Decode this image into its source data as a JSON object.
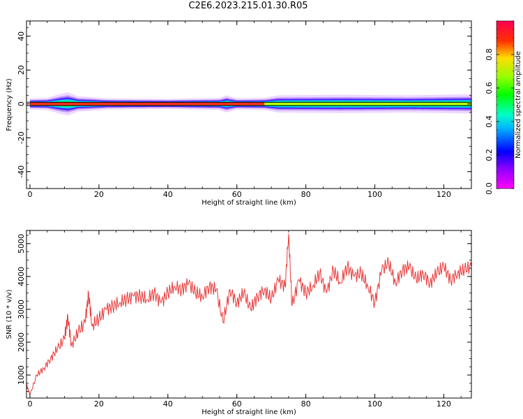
{
  "title": "C2E6.2023.215.01.30.R05",
  "chart_data": [
    {
      "type": "heatmap",
      "xlabel": "Height of straight line (km)",
      "ylabel": "Frequency (Hz)",
      "xlim": [
        -1,
        128
      ],
      "ylim": [
        -50,
        49
      ],
      "xticks": [
        0,
        20,
        40,
        60,
        80,
        100,
        120
      ],
      "yticks": [
        -40,
        -20,
        0,
        20,
        40
      ],
      "colorbar": {
        "label": "Normalized spectral amplitude",
        "range": [
          0,
          1
        ],
        "ticks": [
          "0.0",
          "0.2",
          "0.4",
          "0.6",
          "0.8"
        ],
        "tick_values": [
          0,
          0.2,
          0.4,
          0.6,
          0.8
        ],
        "colormap": "gist_rainbow_r"
      },
      "line": {
        "color": "#000000",
        "y_values": [
          -1,
          1
        ]
      },
      "band": [
        {
          "x": 0,
          "half_width_hz": 2.2
        },
        {
          "x": 5,
          "half_width_hz": 2.4
        },
        {
          "x": 9,
          "half_width_hz": 4.0
        },
        {
          "x": 11,
          "half_width_hz": 4.6
        },
        {
          "x": 14,
          "half_width_hz": 3.0
        },
        {
          "x": 17,
          "half_width_hz": 2.8
        },
        {
          "x": 22,
          "half_width_hz": 2.2
        },
        {
          "x": 40,
          "half_width_hz": 2.0
        },
        {
          "x": 55,
          "half_width_hz": 2.4
        },
        {
          "x": 57,
          "half_width_hz": 3.4
        },
        {
          "x": 60,
          "half_width_hz": 2.2
        },
        {
          "x": 68,
          "half_width_hz": 2.4
        },
        {
          "x": 72,
          "half_width_hz": 3.4
        },
        {
          "x": 90,
          "half_width_hz": 3.6
        },
        {
          "x": 110,
          "half_width_hz": 3.4
        },
        {
          "x": 128,
          "half_width_hz": 3.8
        }
      ],
      "band_color_by_height": [
        {
          "x_range": [
            0,
            68
          ],
          "dominant_amplitude": 0.9
        },
        {
          "x_range": [
            68,
            128
          ],
          "dominant_amplitude": 0.45
        }
      ]
    },
    {
      "type": "line",
      "xlabel": "Height of straight line (km)",
      "ylabel": "SNR (10 * v/v)",
      "xlim": [
        -1,
        128
      ],
      "ylim": [
        300,
        5400
      ],
      "xticks": [
        0,
        20,
        40,
        60,
        80,
        100,
        120
      ],
      "yticks": [
        1000,
        2000,
        3000,
        4000,
        5000
      ],
      "series": [
        {
          "color": "#e8393a",
          "x": [
            -1,
            0,
            2,
            4,
            6,
            8,
            10,
            11,
            12,
            14,
            16,
            17,
            18,
            20,
            22,
            24,
            26,
            28,
            30,
            32,
            34,
            36,
            38,
            40,
            42,
            44,
            46,
            48,
            50,
            52,
            54,
            56,
            58,
            60,
            62,
            64,
            66,
            68,
            70,
            72,
            74,
            75,
            76,
            78,
            80,
            82,
            84,
            86,
            88,
            90,
            92,
            94,
            96,
            98,
            100,
            102,
            104,
            106,
            108,
            110,
            112,
            114,
            116,
            118,
            120,
            122,
            124,
            126,
            128
          ],
          "y": [
            700,
            400,
            1000,
            1200,
            1500,
            1800,
            2100,
            2800,
            1900,
            2300,
            2600,
            3500,
            2500,
            2700,
            3000,
            3100,
            3200,
            3300,
            3400,
            3400,
            3300,
            3500,
            3200,
            3500,
            3700,
            3600,
            3800,
            3500,
            3400,
            3700,
            3600,
            2600,
            3600,
            3200,
            3500,
            3000,
            3400,
            3600,
            3300,
            3900,
            3700,
            5300,
            3100,
            3900,
            3500,
            3700,
            4100,
            3500,
            4200,
            3800,
            4300,
            4000,
            4100,
            3700,
            3200,
            4200,
            4400,
            3800,
            4200,
            4300,
            3900,
            4100,
            3800,
            4100,
            4300,
            3900,
            4100,
            4200,
            4300
          ]
        }
      ]
    }
  ]
}
